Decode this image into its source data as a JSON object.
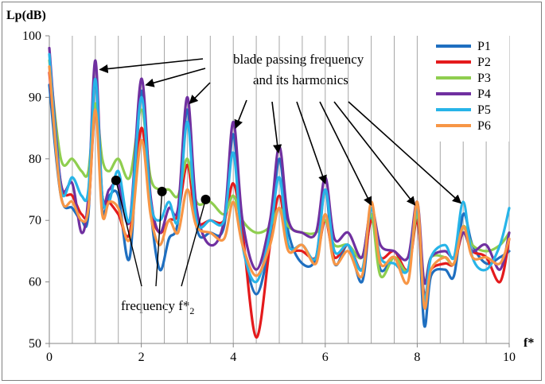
{
  "chart_data": {
    "type": "line",
    "ylabel": "Lp(dB)",
    "xlabel": "f*",
    "xlim": [
      0,
      10
    ],
    "ylim": [
      50,
      100
    ],
    "xticks": [
      "0",
      "2",
      "4",
      "6",
      "8",
      "10"
    ],
    "yticks": [
      "50",
      "60",
      "70",
      "80",
      "90",
      "100"
    ],
    "grid": "vertical",
    "legend_position": "top-right",
    "annotations": {
      "bpf_line1": "blade passing frequency",
      "bpf_line2": "and its harmonics",
      "f2_prefix": "frequency f*",
      "f2_sub": "2"
    },
    "series": [
      {
        "name": "P1",
        "color": "#1f6fc0",
        "x": [
          0,
          0.25,
          0.5,
          0.7,
          0.85,
          1.0,
          1.15,
          1.3,
          1.5,
          1.75,
          2.0,
          2.2,
          2.4,
          2.6,
          2.8,
          3.0,
          3.2,
          3.5,
          3.8,
          4.0,
          4.2,
          4.5,
          4.8,
          5.0,
          5.2,
          5.5,
          5.8,
          6.0,
          6.2,
          6.5,
          6.8,
          7.0,
          7.2,
          7.5,
          7.8,
          8.0,
          8.15,
          8.3,
          8.6,
          8.8,
          9.0,
          9.2,
          9.5,
          9.8,
          10.0
        ],
        "y": [
          92,
          74,
          72,
          70,
          71,
          93,
          72,
          74,
          74,
          64,
          91,
          72,
          62,
          67,
          70,
          88,
          69,
          68,
          69,
          84,
          67,
          58,
          67,
          80,
          68,
          63,
          64,
          75,
          63,
          66,
          60,
          71,
          62,
          64,
          62,
          72,
          53,
          61,
          62,
          61,
          71,
          66,
          63,
          64,
          65
        ]
      },
      {
        "name": "P2",
        "color": "#e41a1c",
        "x": [
          0,
          0.25,
          0.5,
          0.7,
          0.85,
          1.0,
          1.15,
          1.3,
          1.5,
          1.75,
          2.0,
          2.2,
          2.4,
          2.6,
          2.8,
          3.0,
          3.2,
          3.5,
          3.8,
          4.0,
          4.2,
          4.5,
          4.8,
          5.0,
          5.2,
          5.5,
          5.8,
          6.0,
          6.2,
          6.5,
          6.8,
          7.0,
          7.2,
          7.5,
          7.8,
          8.0,
          8.15,
          8.3,
          8.6,
          8.8,
          9.0,
          9.2,
          9.5,
          9.8,
          10.0
        ],
        "y": [
          94,
          76,
          74,
          71,
          72,
          88,
          74,
          73,
          71,
          68,
          85,
          72,
          68,
          70,
          71,
          79,
          70,
          70,
          70,
          76,
          68,
          51,
          66,
          74,
          66,
          65,
          64,
          70,
          64,
          66,
          62,
          70,
          64,
          65,
          62,
          70,
          58,
          62,
          63,
          63,
          68,
          65,
          64,
          60,
          67
        ]
      },
      {
        "name": "P3",
        "color": "#8fce4f",
        "x": [
          0,
          0.25,
          0.5,
          0.7,
          0.85,
          1.0,
          1.15,
          1.3,
          1.5,
          1.75,
          2.0,
          2.2,
          2.4,
          2.6,
          2.8,
          3.0,
          3.2,
          3.5,
          3.8,
          4.0,
          4.2,
          4.5,
          4.8,
          5.0,
          5.2,
          5.5,
          5.8,
          6.0,
          6.2,
          6.5,
          6.8,
          7.0,
          7.2,
          7.5,
          7.8,
          8.0,
          8.15,
          8.3,
          8.6,
          8.8,
          9.0,
          9.2,
          9.5,
          9.8,
          10.0
        ],
        "y": [
          96,
          80,
          80,
          78,
          78,
          89,
          80,
          78,
          80,
          77,
          88,
          77,
          75,
          75,
          74,
          80,
          73,
          73,
          71,
          74,
          70,
          68,
          69,
          72,
          69,
          68,
          68,
          70,
          66,
          66,
          64,
          71,
          61,
          64,
          62,
          71,
          60,
          64,
          64,
          63,
          69,
          66,
          65,
          66,
          68
        ]
      },
      {
        "name": "P4",
        "color": "#7030a0",
        "x": [
          0,
          0.25,
          0.5,
          0.7,
          0.85,
          1.0,
          1.15,
          1.3,
          1.5,
          1.75,
          2.0,
          2.2,
          2.4,
          2.6,
          2.8,
          3.0,
          3.2,
          3.5,
          3.8,
          4.0,
          4.2,
          4.5,
          4.8,
          5.0,
          5.2,
          5.5,
          5.8,
          6.0,
          6.2,
          6.5,
          6.8,
          7.0,
          7.2,
          7.5,
          7.8,
          8.0,
          8.15,
          8.3,
          8.6,
          8.8,
          9.0,
          9.2,
          9.5,
          9.8,
          10.0
        ],
        "y": [
          98,
          76,
          76,
          68,
          74,
          96,
          74,
          75,
          76,
          70,
          93,
          74,
          68,
          72,
          72,
          90,
          72,
          66,
          70,
          86,
          70,
          62,
          70,
          82,
          70,
          68,
          68,
          77,
          67,
          68,
          64,
          72,
          66,
          65,
          64,
          73,
          60,
          64,
          65,
          64,
          68,
          65,
          66,
          62,
          68
        ]
      },
      {
        "name": "P5",
        "color": "#27b4e8",
        "x": [
          0,
          0.25,
          0.5,
          0.7,
          0.85,
          1.0,
          1.15,
          1.3,
          1.5,
          1.75,
          2.0,
          2.2,
          2.4,
          2.6,
          2.8,
          3.0,
          3.2,
          3.5,
          3.8,
          4.0,
          4.2,
          4.5,
          4.8,
          5.0,
          5.2,
          5.5,
          5.8,
          6.0,
          6.2,
          6.5,
          6.8,
          7.0,
          7.2,
          7.5,
          7.8,
          8.0,
          8.15,
          8.3,
          8.6,
          8.8,
          9.0,
          9.2,
          9.5,
          9.8,
          10.0
        ],
        "y": [
          97,
          75,
          77,
          74,
          75,
          93,
          74,
          73,
          78,
          70,
          90,
          73,
          70,
          73,
          70,
          86,
          70,
          70,
          70,
          81,
          66,
          60,
          68,
          77,
          66,
          66,
          64,
          75,
          65,
          66,
          62,
          72,
          64,
          63,
          62,
          72,
          57,
          64,
          66,
          64,
          73,
          64,
          62,
          66,
          72
        ]
      },
      {
        "name": "P6",
        "color": "#f79646",
        "x": [
          0,
          0.25,
          0.5,
          0.7,
          0.85,
          1.0,
          1.15,
          1.3,
          1.5,
          1.75,
          2.0,
          2.2,
          2.4,
          2.6,
          2.8,
          3.0,
          3.2,
          3.5,
          3.8,
          4.0,
          4.2,
          4.5,
          4.8,
          5.0,
          5.2,
          5.5,
          5.8,
          6.0,
          6.2,
          6.5,
          6.8,
          7.0,
          7.2,
          7.5,
          7.8,
          8.0,
          8.15,
          8.3,
          8.6,
          8.8,
          9.0,
          9.2,
          9.5,
          9.8,
          10.0
        ],
        "y": [
          95,
          74,
          73,
          70,
          72,
          88,
          71,
          73,
          72,
          67,
          83,
          71,
          66,
          70,
          68,
          75,
          69,
          68,
          67,
          73,
          66,
          61,
          66,
          72,
          65,
          66,
          63,
          71,
          63,
          65,
          61,
          73,
          63,
          64,
          60,
          73,
          56,
          62,
          64,
          63,
          69,
          64,
          64,
          63,
          67
        ]
      }
    ],
    "markers_f2": [
      {
        "x": 1.45,
        "y": 76.5
      },
      {
        "x": 2.45,
        "y": 74.7
      },
      {
        "x": 3.4,
        "y": 73.4
      }
    ]
  }
}
